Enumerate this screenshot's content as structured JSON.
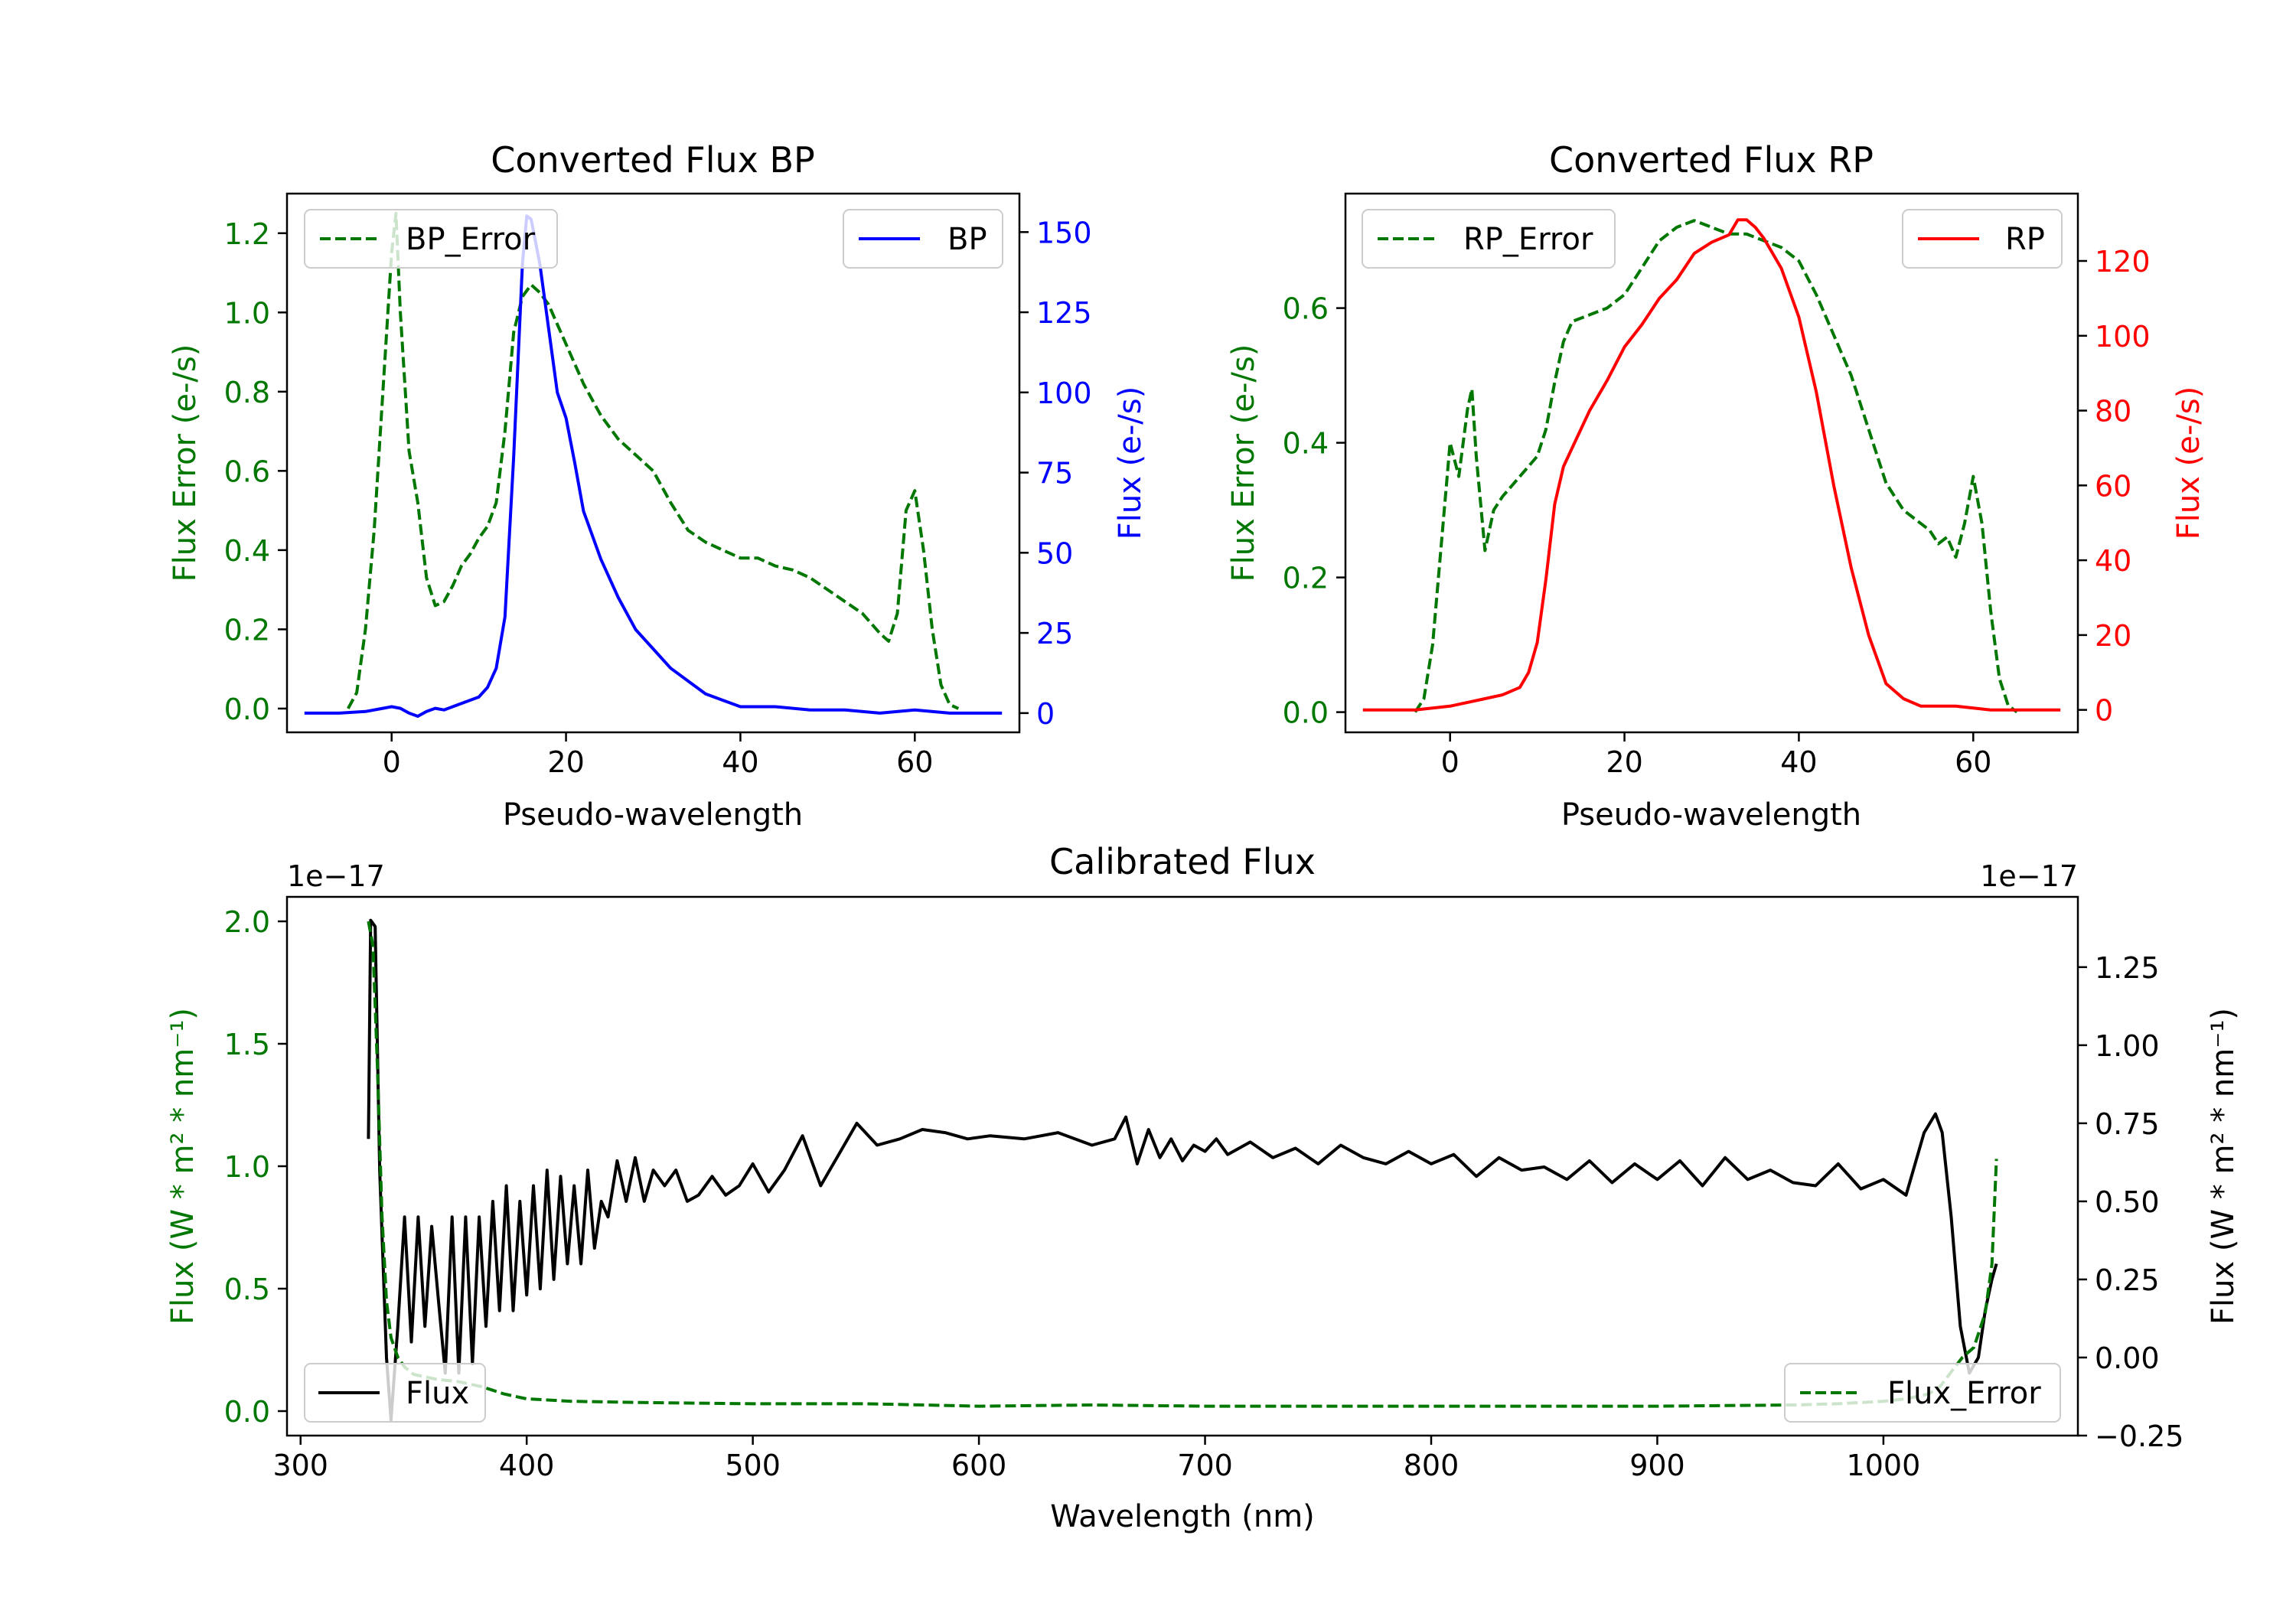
{
  "chart_data": [
    {
      "type": "line",
      "title": "Converted Flux BP",
      "xlabel": "Pseudo-wavelength",
      "xlim": [
        -12,
        72
      ],
      "xticks": [
        0,
        20,
        40,
        60
      ],
      "left_axis": {
        "label": "Flux Error (e-/s)",
        "color": "#007700",
        "ylim": [
          -0.06,
          1.3
        ],
        "ticks": [
          0.0,
          0.2,
          0.4,
          0.6,
          0.8,
          1.0,
          1.2
        ],
        "tick_labels": [
          "0.0",
          "0.2",
          "0.4",
          "0.6",
          "0.8",
          "1.0",
          "1.2"
        ]
      },
      "right_axis": {
        "label": "Flux (e-/s)",
        "color": "#0000ff",
        "ylim": [
          -6,
          162
        ],
        "ticks": [
          0,
          25,
          50,
          75,
          100,
          125,
          150
        ],
        "tick_labels": [
          "0",
          "25",
          "50",
          "75",
          "100",
          "125",
          "150"
        ]
      },
      "series": [
        {
          "name": "BP_Error",
          "axis": "left",
          "color": "#007700",
          "style": "dashed",
          "legend_label": "BP_Error",
          "legend": "upper-left",
          "x": [
            -5,
            -4,
            -3,
            -2,
            -1,
            0,
            0.5,
            1,
            2,
            3,
            4,
            5,
            6,
            7,
            8,
            9,
            10,
            11,
            12,
            13,
            14,
            15,
            16,
            17,
            18,
            20,
            22,
            24,
            26,
            28,
            30,
            32,
            34,
            36,
            38,
            40,
            42,
            44,
            46,
            48,
            50,
            52,
            54,
            56,
            57,
            58,
            59,
            60,
            61,
            62,
            63,
            64,
            65
          ],
          "y": [
            0.0,
            0.04,
            0.2,
            0.45,
            0.8,
            1.15,
            1.25,
            1.0,
            0.65,
            0.52,
            0.33,
            0.26,
            0.27,
            0.31,
            0.36,
            0.39,
            0.43,
            0.46,
            0.52,
            0.7,
            0.95,
            1.04,
            1.07,
            1.05,
            1.02,
            0.92,
            0.82,
            0.74,
            0.68,
            0.64,
            0.6,
            0.52,
            0.45,
            0.42,
            0.4,
            0.38,
            0.38,
            0.36,
            0.35,
            0.33,
            0.3,
            0.27,
            0.24,
            0.19,
            0.17,
            0.24,
            0.5,
            0.55,
            0.4,
            0.2,
            0.06,
            0.01,
            0.0
          ]
        },
        {
          "name": "BP",
          "axis": "right",
          "color": "#0000ff",
          "style": "solid",
          "legend_label": "BP",
          "legend": "upper-right",
          "x": [
            -10,
            -6,
            -3,
            -1,
            0,
            1,
            2,
            3,
            4,
            5,
            6,
            8,
            10,
            11,
            12,
            13,
            14,
            15,
            15.5,
            16,
            17,
            18,
            19,
            20,
            21,
            22,
            24,
            26,
            28,
            30,
            32,
            34,
            36,
            38,
            40,
            44,
            48,
            52,
            56,
            60,
            64,
            70
          ],
          "y": [
            0,
            0,
            0.5,
            1.5,
            2,
            1.5,
            0,
            -1,
            0.5,
            1.5,
            1,
            3,
            5,
            8,
            14,
            30,
            80,
            140,
            155,
            154,
            140,
            120,
            100,
            92,
            78,
            63,
            48,
            36,
            26,
            20,
            14,
            10,
            6,
            4,
            2,
            2,
            1,
            1,
            0,
            1,
            0,
            0
          ]
        }
      ]
    },
    {
      "type": "line",
      "title": "Converted Flux RP",
      "xlabel": "Pseudo-wavelength",
      "xlim": [
        -12,
        72
      ],
      "xticks": [
        0,
        20,
        40,
        60
      ],
      "left_axis": {
        "label": "Flux Error (e-/s)",
        "color": "#007700",
        "ylim": [
          -0.03,
          0.77
        ],
        "ticks": [
          0.0,
          0.2,
          0.4,
          0.6
        ],
        "tick_labels": [
          "0.0",
          "0.2",
          "0.4",
          "0.6"
        ]
      },
      "right_axis": {
        "label": "Flux (e-/s)",
        "color": "#ff0000",
        "ylim": [
          -6,
          138
        ],
        "ticks": [
          0,
          20,
          40,
          60,
          80,
          100,
          120
        ],
        "tick_labels": [
          "0",
          "20",
          "40",
          "60",
          "80",
          "100",
          "120"
        ]
      },
      "series": [
        {
          "name": "RP_Error",
          "axis": "left",
          "color": "#007700",
          "style": "dashed",
          "legend_label": "RP_Error",
          "legend": "upper-left",
          "x": [
            -4,
            -3,
            -2,
            -1,
            0,
            1,
            2,
            2.5,
            3,
            4,
            5,
            6,
            8,
            10,
            11,
            12,
            13,
            14,
            16,
            18,
            20,
            22,
            24,
            26,
            28,
            30,
            32,
            34,
            36,
            38,
            40,
            42,
            44,
            46,
            48,
            50,
            52,
            54,
            55,
            56,
            57,
            58,
            59,
            60,
            61,
            62,
            63,
            64,
            65
          ],
          "y": [
            0.0,
            0.02,
            0.1,
            0.25,
            0.4,
            0.35,
            0.45,
            0.48,
            0.38,
            0.24,
            0.3,
            0.32,
            0.35,
            0.38,
            0.42,
            0.49,
            0.55,
            0.58,
            0.59,
            0.6,
            0.62,
            0.66,
            0.7,
            0.72,
            0.73,
            0.72,
            0.71,
            0.71,
            0.7,
            0.69,
            0.67,
            0.62,
            0.56,
            0.5,
            0.42,
            0.34,
            0.3,
            0.28,
            0.27,
            0.25,
            0.26,
            0.23,
            0.28,
            0.35,
            0.28,
            0.15,
            0.05,
            0.01,
            0.0
          ]
        },
        {
          "name": "RP",
          "axis": "right",
          "color": "#ff0000",
          "style": "solid",
          "legend_label": "RP",
          "legend": "upper-right",
          "x": [
            -10,
            -4,
            -2,
            0,
            2,
            4,
            6,
            8,
            9,
            10,
            11,
            12,
            13,
            14,
            16,
            18,
            20,
            22,
            24,
            26,
            28,
            30,
            32,
            33,
            34,
            35,
            36,
            38,
            40,
            42,
            44,
            46,
            48,
            50,
            52,
            54,
            56,
            58,
            60,
            62,
            64,
            70
          ],
          "y": [
            0,
            0,
            0.5,
            1,
            2,
            3,
            4,
            6,
            10,
            18,
            35,
            55,
            65,
            70,
            80,
            88,
            97,
            103,
            110,
            115,
            122,
            125,
            127,
            131,
            131,
            129,
            126,
            118,
            105,
            85,
            60,
            38,
            20,
            7,
            3,
            1,
            1,
            1,
            0.5,
            0,
            0,
            0
          ]
        }
      ]
    },
    {
      "type": "line",
      "title": "Calibrated Flux",
      "xlabel": "Wavelength (nm)",
      "xlim": [
        294,
        1086
      ],
      "xticks": [
        300,
        400,
        500,
        600,
        700,
        800,
        900,
        1000
      ],
      "left_axis": {
        "label": "Flux (W * m² * nm⁻¹)",
        "color": "#007700",
        "offset_text": "1e−17",
        "ylim": [
          -0.1,
          2.1
        ],
        "ticks": [
          0.0,
          0.5,
          1.0,
          1.5,
          2.0
        ],
        "tick_labels": [
          "0.0",
          "0.5",
          "1.0",
          "1.5",
          "2.0"
        ]
      },
      "right_axis": {
        "label": "Flux (W * m² * nm⁻¹)",
        "color": "#000000",
        "offset_text": "1e−17",
        "ylim": [
          -0.25,
          1.475
        ],
        "ticks": [
          -0.25,
          0.0,
          0.25,
          0.5,
          0.75,
          1.0,
          1.25
        ],
        "tick_labels": [
          "−0.25",
          "0.00",
          "0.25",
          "0.50",
          "0.75",
          "1.00",
          "1.25"
        ]
      },
      "series": [
        {
          "name": "Flux",
          "axis": "right",
          "color": "#000000",
          "style": "solid",
          "legend_label": "Flux",
          "legend": "lower-left",
          "x": [
            330,
            331,
            333,
            335,
            338,
            340,
            343,
            346,
            349,
            352,
            355,
            358,
            361,
            364,
            367,
            370,
            373,
            376,
            379,
            382,
            385,
            388,
            391,
            394,
            397,
            400,
            403,
            406,
            409,
            412,
            415,
            418,
            421,
            424,
            427,
            430,
            433,
            436,
            440,
            444,
            448,
            452,
            456,
            461,
            466,
            471,
            476,
            482,
            488,
            494,
            500,
            507,
            514,
            522,
            530,
            538,
            546,
            555,
            565,
            575,
            585,
            595,
            605,
            620,
            635,
            650,
            660,
            665,
            670,
            675,
            680,
            685,
            690,
            695,
            700,
            705,
            710,
            720,
            730,
            740,
            750,
            760,
            770,
            780,
            790,
            800,
            810,
            820,
            830,
            840,
            850,
            860,
            870,
            880,
            890,
            900,
            910,
            920,
            930,
            940,
            950,
            960,
            970,
            980,
            990,
            1000,
            1010,
            1018,
            1023,
            1026,
            1030,
            1034,
            1038,
            1042,
            1045,
            1048,
            1050
          ],
          "y": [
            0.7,
            1.4,
            1.38,
            0.6,
            0.0,
            -0.2,
            0.1,
            0.45,
            0.05,
            0.45,
            0.1,
            0.42,
            0.18,
            -0.05,
            0.45,
            -0.05,
            0.45,
            -0.02,
            0.45,
            0.1,
            0.5,
            0.15,
            0.55,
            0.15,
            0.5,
            0.2,
            0.55,
            0.22,
            0.6,
            0.25,
            0.58,
            0.3,
            0.55,
            0.3,
            0.6,
            0.35,
            0.5,
            0.45,
            0.63,
            0.5,
            0.64,
            0.5,
            0.6,
            0.55,
            0.6,
            0.5,
            0.52,
            0.58,
            0.52,
            0.55,
            0.62,
            0.53,
            0.6,
            0.71,
            0.55,
            0.65,
            0.75,
            0.68,
            0.7,
            0.73,
            0.72,
            0.7,
            0.71,
            0.7,
            0.72,
            0.68,
            0.7,
            0.77,
            0.62,
            0.73,
            0.64,
            0.7,
            0.63,
            0.68,
            0.66,
            0.7,
            0.65,
            0.69,
            0.64,
            0.67,
            0.62,
            0.68,
            0.64,
            0.62,
            0.66,
            0.62,
            0.65,
            0.58,
            0.64,
            0.6,
            0.61,
            0.57,
            0.63,
            0.56,
            0.62,
            0.57,
            0.63,
            0.55,
            0.64,
            0.57,
            0.6,
            0.56,
            0.55,
            0.62,
            0.54,
            0.57,
            0.52,
            0.72,
            0.78,
            0.72,
            0.45,
            0.1,
            -0.05,
            0.0,
            0.15,
            0.25,
            0.3
          ]
        },
        {
          "name": "Flux_Error",
          "axis": "left",
          "color": "#007700",
          "style": "dashed",
          "legend_label": "Flux_Error",
          "legend": "lower-right",
          "x": [
            330,
            332,
            334,
            336,
            338,
            340,
            343,
            346,
            350,
            355,
            360,
            370,
            380,
            390,
            400,
            420,
            450,
            500,
            550,
            600,
            650,
            700,
            800,
            900,
            960,
            980,
            1000,
            1010,
            1020,
            1025,
            1030,
            1035,
            1040,
            1045,
            1048,
            1050
          ],
          "y": [
            2.0,
            1.9,
            1.4,
            0.8,
            0.45,
            0.3,
            0.22,
            0.18,
            0.15,
            0.14,
            0.13,
            0.12,
            0.1,
            0.07,
            0.05,
            0.04,
            0.035,
            0.03,
            0.03,
            0.02,
            0.025,
            0.02,
            0.02,
            0.02,
            0.025,
            0.03,
            0.04,
            0.05,
            0.07,
            0.1,
            0.16,
            0.22,
            0.26,
            0.4,
            0.6,
            1.03
          ]
        }
      ]
    }
  ]
}
